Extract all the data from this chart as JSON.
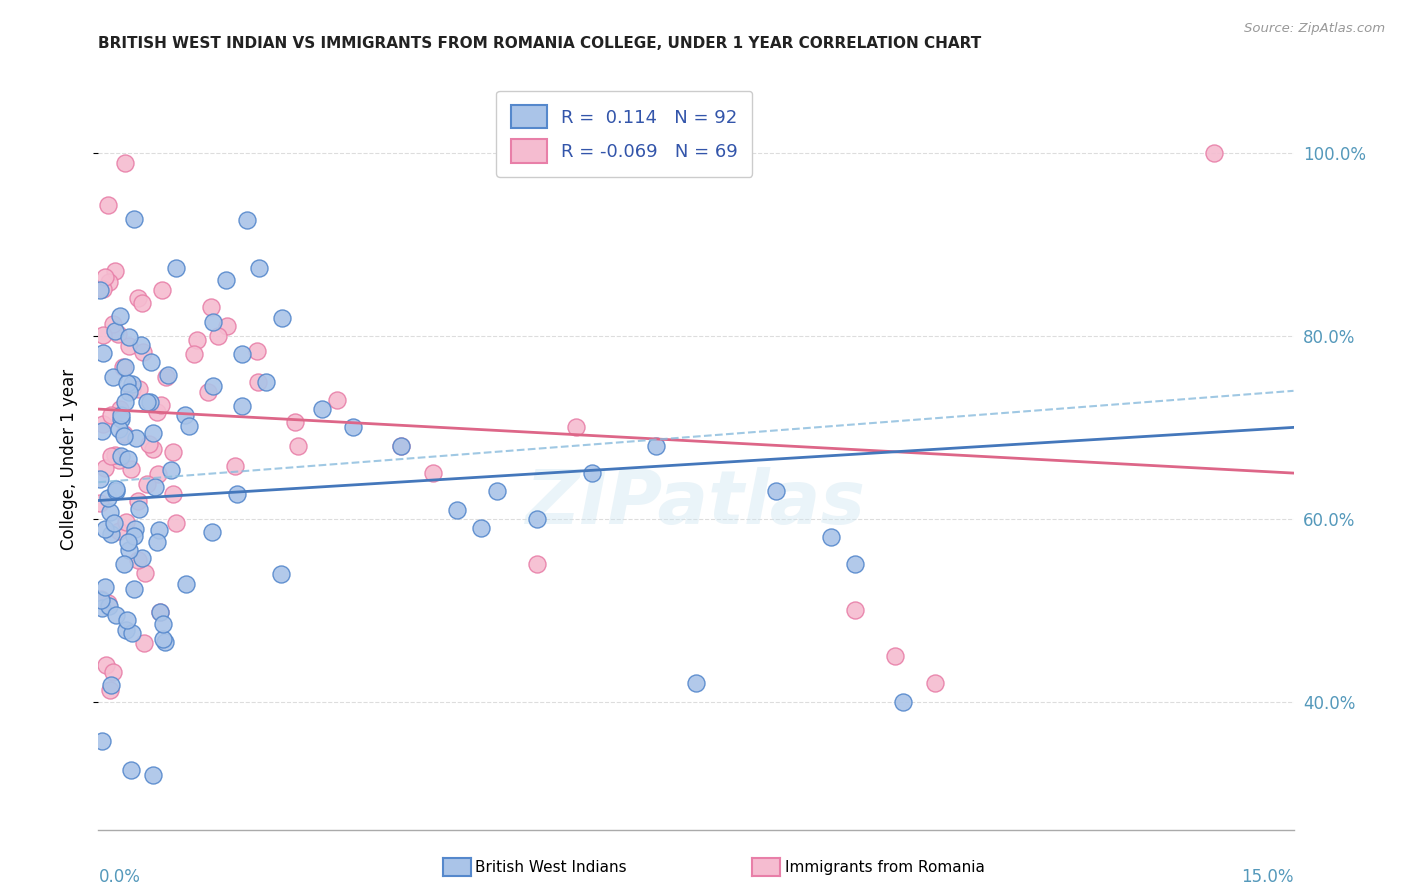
{
  "title": "BRITISH WEST INDIAN VS IMMIGRANTS FROM ROMANIA COLLEGE, UNDER 1 YEAR CORRELATION CHART",
  "source": "Source: ZipAtlas.com",
  "ylabel": "College, Under 1 year",
  "xmin": 0.0,
  "xmax": 15.0,
  "ymin": 26.0,
  "ymax": 107.0,
  "ytick_vals": [
    40.0,
    60.0,
    80.0,
    100.0
  ],
  "ytick_labels": [
    "40.0%",
    "60.0%",
    "80.0%",
    "100.0%"
  ],
  "series1_label": "British West Indians",
  "series2_label": "Immigrants from Romania",
  "series1_color": "#aac4e8",
  "series1_edge_color": "#5588cc",
  "series2_color": "#f5bcd0",
  "series2_edge_color": "#e87fa8",
  "trend1_color": "#4477bb",
  "trend2_color": "#dd6688",
  "trend1_dash_color": "#88bbdd",
  "R1": 0.114,
  "N1": 92,
  "R2": -0.069,
  "N2": 69,
  "legend_text_color": "#3355aa",
  "watermark": "ZIPatlas",
  "title_color": "#222222",
  "source_color": "#999999",
  "grid_color": "#dddddd",
  "axis_label_color": "#5599bb",
  "trend1_y0": 62.0,
  "trend1_y1": 70.0,
  "trend2_y0": 72.0,
  "trend2_y1": 65.0,
  "trend_dash_y0": 64.0,
  "trend_dash_y1": 74.0
}
